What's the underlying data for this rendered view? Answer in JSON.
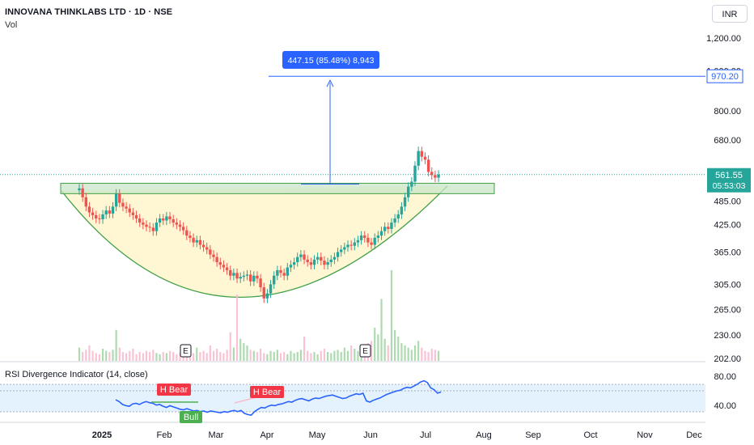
{
  "header": {
    "title": "INNOVANA THINKLABS LTD · 1D · NSE",
    "vol_label": "Vol",
    "currency_button": "INR"
  },
  "colors": {
    "up": "#26a69a",
    "down": "#ef5350",
    "cup_line": "#43a047",
    "cup_fill": "#fff6cc",
    "resistance_fill": "#c8e6c9",
    "measure": "#2962ff",
    "rsi_line": "#2962ff",
    "rsi_band": "#e3f2fd",
    "bull_tag": "#4caf50",
    "bear_tag": "#f23645"
  },
  "measure_tool": {
    "label": "447.15 (85.48%) 8,943",
    "target_price": 970.2,
    "target_label": "970.20"
  },
  "last_price": {
    "price": 561.55,
    "label": "561.55",
    "countdown": "05:53:03"
  },
  "earnings_marker": "E",
  "rsi_panel": {
    "title": "RSI Divergence Indicator (14, close)",
    "tags": [
      {
        "text": "H Bear",
        "kind": "bear",
        "month": "Feb"
      },
      {
        "text": "Bull",
        "kind": "bull",
        "month": "Feb"
      },
      {
        "text": "H Bear",
        "kind": "bear",
        "month": "Apr"
      }
    ],
    "y_ticks": [
      80,
      40
    ],
    "y_tick_labels": [
      "80.00",
      "40.00"
    ],
    "series": [
      54,
      51,
      46,
      44,
      43,
      47,
      48,
      46,
      49,
      51,
      49,
      48,
      45,
      46,
      43,
      41,
      44,
      42,
      40,
      38,
      37,
      39,
      37,
      35,
      36,
      34,
      35,
      33,
      35,
      34,
      33,
      32,
      34,
      33,
      35,
      36,
      34,
      36,
      31,
      29,
      28,
      34,
      38,
      41,
      40,
      43,
      45,
      44,
      46,
      47,
      49,
      51,
      50,
      53,
      55,
      56,
      54,
      52,
      55,
      57,
      56,
      58,
      60,
      61,
      62,
      60,
      58,
      56,
      57,
      60,
      62,
      64,
      63,
      65,
      52,
      50,
      53,
      55,
      57,
      60,
      63,
      65,
      67,
      69,
      70,
      73,
      75,
      74,
      77,
      80,
      84,
      86,
      83,
      74,
      71,
      65,
      67
    ]
  },
  "chart_data": {
    "type": "candlestick",
    "title": "INNOVANA THINKLABS LTD · 1D · NSE",
    "y_scale": "log",
    "y_range": [
      195,
      1350
    ],
    "y_ticks": [
      1200,
      1000,
      800,
      680,
      485,
      425,
      365,
      305,
      265,
      230,
      202
    ],
    "y_tick_labels": [
      "1,200.00",
      "1,000.00",
      "800.00",
      "680.00",
      "485.00",
      "425.00",
      "365.00",
      "305.00",
      "265.00",
      "230.00",
      "202.00"
    ],
    "x_labels": [
      "2025",
      "Feb",
      "Mar",
      "Apr",
      "May",
      "Jun",
      "Jul",
      "Aug",
      "Sep",
      "Oct",
      "Nov",
      "Dec"
    ],
    "resistance_zone": [
      505,
      535
    ],
    "cup": {
      "start_month_offset": -0.8,
      "end_month_offset": 5.4,
      "rim_price": 520,
      "bottom_price": 282
    },
    "closes": [
      520,
      495,
      470,
      455,
      448,
      440,
      438,
      450,
      460,
      452,
      470,
      505,
      480,
      470,
      465,
      455,
      448,
      440,
      430,
      425,
      420,
      418,
      410,
      430,
      440,
      435,
      445,
      438,
      430,
      425,
      420,
      412,
      400,
      395,
      385,
      390,
      380,
      375,
      370,
      360,
      355,
      345,
      340,
      335,
      330,
      320,
      325,
      315,
      318,
      320,
      322,
      310,
      320,
      315,
      300,
      282,
      290,
      305,
      320,
      330,
      325,
      320,
      335,
      340,
      345,
      355,
      360,
      350,
      345,
      340,
      350,
      355,
      348,
      340,
      345,
      350,
      355,
      365,
      370,
      375,
      380,
      378,
      385,
      390,
      400,
      395,
      385,
      380,
      395,
      400,
      410,
      420,
      415,
      430,
      440,
      450,
      470,
      495,
      525,
      540,
      590,
      640,
      620,
      610,
      570,
      560,
      552,
      561.55
    ],
    "volumes": [
      12,
      8,
      10,
      14,
      9,
      7,
      6,
      11,
      9,
      8,
      10,
      28,
      12,
      8,
      7,
      9,
      11,
      6,
      8,
      7,
      9,
      8,
      10,
      7,
      6,
      8,
      7,
      9,
      8,
      6,
      7,
      9,
      8,
      10,
      7,
      12,
      8,
      9,
      7,
      14,
      9,
      11,
      8,
      7,
      10,
      26,
      12,
      60,
      20,
      16,
      14,
      10,
      9,
      8,
      11,
      7,
      6,
      9,
      8,
      10,
      7,
      8,
      6,
      9,
      7,
      8,
      10,
      22,
      9,
      7,
      8,
      6,
      9,
      11,
      8,
      7,
      9,
      10,
      8,
      12,
      9,
      14,
      11,
      9,
      10,
      12,
      16,
      18,
      30,
      24,
      56,
      20,
      14,
      82,
      28,
      22,
      16,
      14,
      12,
      10,
      14,
      18,
      12,
      9,
      8,
      11,
      10,
      9
    ]
  }
}
